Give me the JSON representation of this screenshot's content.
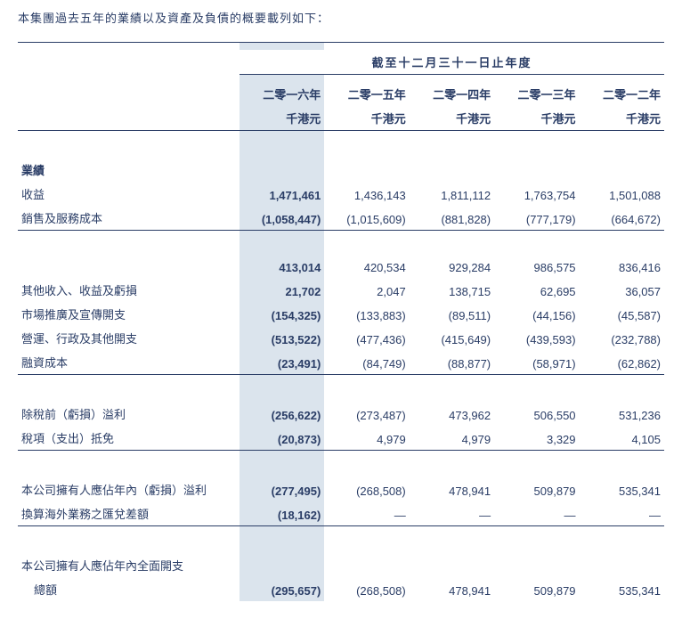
{
  "colors": {
    "text": "#2a3d66",
    "highlight_bg": "#dbe4ed",
    "rule": "#2a3d66",
    "page_bg": "#ffffff"
  },
  "intro": "本集團過去五年的業績以及資產及負債的概要載列如下：",
  "table": {
    "span_header": "截至十二月三十一日止年度",
    "year_headers": {
      "y2016": {
        "l1": "二零一六年",
        "l2": "千港元"
      },
      "y2015": {
        "l1": "二零一五年",
        "l2": "千港元"
      },
      "y2014": {
        "l1": "二零一四年",
        "l2": "千港元"
      },
      "y2013": {
        "l1": "二零一三年",
        "l2": "千港元"
      },
      "y2012": {
        "l1": "二零一二年",
        "l2": "千港元"
      }
    },
    "section1_title": "業績",
    "rows": {
      "revenue": {
        "label": "收益",
        "v16": "1,471,461",
        "v15": "1,436,143",
        "v14": "1,811,112",
        "v13": "1,763,754",
        "v12": "1,501,088"
      },
      "cogs": {
        "label": "銷售及服務成本",
        "v16": "(1,058,447)",
        "v15": "(1,015,609)",
        "v14": "(881,828)",
        "v13": "(777,179)",
        "v12": "(664,672)"
      },
      "gross": {
        "label": "",
        "v16": "413,014",
        "v15": "420,534",
        "v14": "929,284",
        "v13": "986,575",
        "v12": "836,416"
      },
      "other_inc": {
        "label": "其他收入、收益及虧損",
        "v16": "21,702",
        "v15": "2,047",
        "v14": "138,715",
        "v13": "62,695",
        "v12": "36,057"
      },
      "marketing": {
        "label": "市場推廣及宣傳開支",
        "v16": "(154,325)",
        "v15": "(133,883)",
        "v14": "(89,511)",
        "v13": "(44,156)",
        "v12": "(45,587)"
      },
      "admin": {
        "label": "營運、行政及其他開支",
        "v16": "(513,522)",
        "v15": "(477,436)",
        "v14": "(415,649)",
        "v13": "(439,593)",
        "v12": "(232,788)"
      },
      "finance": {
        "label": "融資成本",
        "v16": "(23,491)",
        "v15": "(84,749)",
        "v14": "(88,877)",
        "v13": "(58,971)",
        "v12": "(62,862)"
      },
      "pbt": {
        "label": "除稅前（虧損）溢利",
        "v16": "(256,622)",
        "v15": "(273,487)",
        "v14": "473,962",
        "v13": "506,550",
        "v12": "531,236"
      },
      "tax": {
        "label": "稅項（支出）抵免",
        "v16": "(20,873)",
        "v15": "4,979",
        "v14": "4,979",
        "v13": "3,329",
        "v12": "4,105"
      },
      "attrib": {
        "label": "本公司擁有人應佔年內（虧損）溢利",
        "v16": "(277,495)",
        "v15": "(268,508)",
        "v14": "478,941",
        "v13": "509,879",
        "v12": "535,341"
      },
      "fx": {
        "label": "換算海外業務之匯兌差額",
        "v16": "(18,162)",
        "v15": "—",
        "v14": "—",
        "v13": "—",
        "v12": "—"
      },
      "tci_label": {
        "label": "本公司擁有人應佔年內全面開支"
      },
      "tci": {
        "label": "總額",
        "v16": "(295,657)",
        "v15": "(268,508)",
        "v14": "478,941",
        "v13": "509,879",
        "v12": "535,341"
      }
    }
  }
}
